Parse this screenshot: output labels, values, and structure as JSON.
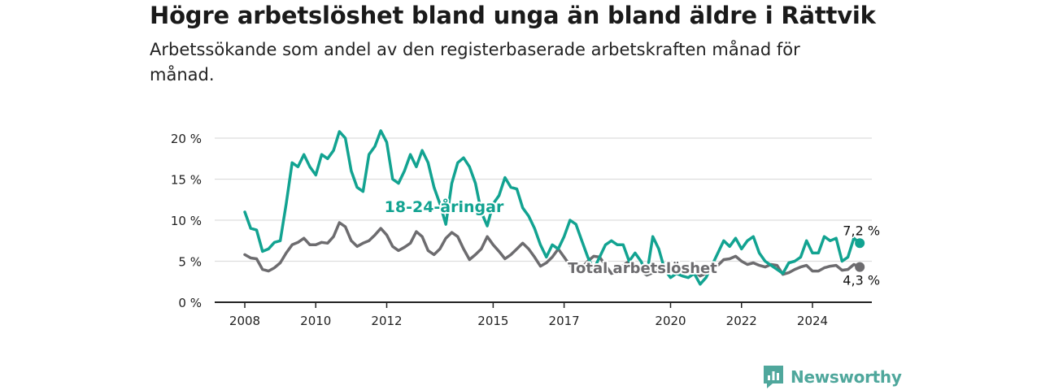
{
  "title": "Högre arbetslöshet bland unga än bland äldre i Rättvik",
  "subtitle": "Arbetssökande som andel av den registerbaserade arbetskraften månad för månad.",
  "brand": "Newsworthy",
  "colors": {
    "youth": "#12a391",
    "total": "#6d6c6f",
    "axis": "#222222",
    "grid": "#dddddd",
    "brand": "#4fa79c"
  },
  "chart_data": {
    "type": "line",
    "x_ticks": [
      "2008",
      "2010",
      "2012",
      "2015",
      "2017",
      "2020",
      "2022",
      "2024"
    ],
    "y_ticks": [
      "0 %",
      "5 %",
      "10 %",
      "15 %",
      "20 %"
    ],
    "ylim": [
      0,
      20
    ],
    "grid": true,
    "series": [
      {
        "name": "18-24-åringar",
        "end_label": "7,2 %",
        "points": [
          [
            "2008-01",
            11.0
          ],
          [
            "2008-03",
            9.0
          ],
          [
            "2008-05",
            8.8
          ],
          [
            "2008-07",
            6.2
          ],
          [
            "2008-09",
            6.5
          ],
          [
            "2008-11",
            7.3
          ],
          [
            "2009-01",
            7.5
          ],
          [
            "2009-03",
            12.0
          ],
          [
            "2009-05",
            17.0
          ],
          [
            "2009-07",
            16.5
          ],
          [
            "2009-09",
            18.0
          ],
          [
            "2009-11",
            16.5
          ],
          [
            "2010-01",
            15.5
          ],
          [
            "2010-03",
            18.0
          ],
          [
            "2010-05",
            17.5
          ],
          [
            "2010-07",
            18.5
          ],
          [
            "2010-09",
            20.8
          ],
          [
            "2010-11",
            20.0
          ],
          [
            "2011-01",
            16.0
          ],
          [
            "2011-03",
            14.0
          ],
          [
            "2011-05",
            13.5
          ],
          [
            "2011-07",
            18.0
          ],
          [
            "2011-09",
            19.0
          ],
          [
            "2011-11",
            20.9
          ],
          [
            "2012-01",
            19.5
          ],
          [
            "2012-03",
            15.0
          ],
          [
            "2012-05",
            14.5
          ],
          [
            "2012-07",
            16.0
          ],
          [
            "2012-09",
            18.0
          ],
          [
            "2012-11",
            16.5
          ],
          [
            "2013-01",
            18.5
          ],
          [
            "2013-03",
            17.0
          ],
          [
            "2013-05",
            14.0
          ],
          [
            "2013-07",
            12.0
          ],
          [
            "2013-09",
            9.5
          ],
          [
            "2013-11",
            14.5
          ],
          [
            "2014-01",
            17.0
          ],
          [
            "2014-03",
            17.6
          ],
          [
            "2014-05",
            16.5
          ],
          [
            "2014-07",
            14.5
          ],
          [
            "2014-09",
            11.0
          ],
          [
            "2014-11",
            9.3
          ],
          [
            "2015-01",
            12.0
          ],
          [
            "2015-03",
            13.0
          ],
          [
            "2015-05",
            15.2
          ],
          [
            "2015-07",
            14.0
          ],
          [
            "2015-09",
            13.8
          ],
          [
            "2015-11",
            11.5
          ],
          [
            "2016-01",
            10.5
          ],
          [
            "2016-03",
            9.0
          ],
          [
            "2016-05",
            7.0
          ],
          [
            "2016-07",
            5.5
          ],
          [
            "2016-09",
            7.0
          ],
          [
            "2016-11",
            6.5
          ],
          [
            "2017-01",
            8.0
          ],
          [
            "2017-03",
            10.0
          ],
          [
            "2017-05",
            9.5
          ],
          [
            "2017-07",
            7.5
          ],
          [
            "2017-09",
            5.5
          ],
          [
            "2017-11",
            4.0
          ],
          [
            "2018-01",
            5.5
          ],
          [
            "2018-03",
            7.0
          ],
          [
            "2018-05",
            7.5
          ],
          [
            "2018-07",
            7.0
          ],
          [
            "2018-09",
            7.0
          ],
          [
            "2018-11",
            5.0
          ],
          [
            "2019-01",
            6.0
          ],
          [
            "2019-03",
            5.0
          ],
          [
            "2019-05",
            3.5
          ],
          [
            "2019-07",
            8.0
          ],
          [
            "2019-09",
            6.5
          ],
          [
            "2019-11",
            4.0
          ],
          [
            "2020-01",
            3.0
          ],
          [
            "2020-03",
            3.5
          ],
          [
            "2020-05",
            3.2
          ],
          [
            "2020-07",
            3.0
          ],
          [
            "2020-09",
            3.5
          ],
          [
            "2020-11",
            2.2
          ],
          [
            "2021-01",
            3.0
          ],
          [
            "2021-03",
            4.5
          ],
          [
            "2021-05",
            6.0
          ],
          [
            "2021-07",
            7.5
          ],
          [
            "2021-09",
            6.8
          ],
          [
            "2021-11",
            7.8
          ],
          [
            "2022-01",
            6.5
          ],
          [
            "2022-03",
            7.5
          ],
          [
            "2022-05",
            8.0
          ],
          [
            "2022-07",
            6.0
          ],
          [
            "2022-09",
            5.0
          ],
          [
            "2022-11",
            4.5
          ],
          [
            "2023-01",
            4.0
          ],
          [
            "2023-03",
            3.5
          ],
          [
            "2023-05",
            4.8
          ],
          [
            "2023-07",
            5.0
          ],
          [
            "2023-09",
            5.5
          ],
          [
            "2023-11",
            7.5
          ],
          [
            "2024-01",
            6.0
          ],
          [
            "2024-03",
            6.0
          ],
          [
            "2024-05",
            8.0
          ],
          [
            "2024-07",
            7.5
          ],
          [
            "2024-09",
            7.8
          ],
          [
            "2024-11",
            5.0
          ],
          [
            "2025-01",
            5.5
          ],
          [
            "2025-03",
            7.8
          ],
          [
            "2025-05",
            7.2
          ]
        ]
      },
      {
        "name": "Total arbetslöshet",
        "end_label": "4,3 %",
        "points": [
          [
            "2008-01",
            5.8
          ],
          [
            "2008-03",
            5.4
          ],
          [
            "2008-05",
            5.3
          ],
          [
            "2008-07",
            4.0
          ],
          [
            "2008-09",
            3.8
          ],
          [
            "2008-11",
            4.2
          ],
          [
            "2009-01",
            4.8
          ],
          [
            "2009-03",
            6.0
          ],
          [
            "2009-05",
            7.0
          ],
          [
            "2009-07",
            7.3
          ],
          [
            "2009-09",
            7.8
          ],
          [
            "2009-11",
            7.0
          ],
          [
            "2010-01",
            7.0
          ],
          [
            "2010-03",
            7.3
          ],
          [
            "2010-05",
            7.2
          ],
          [
            "2010-07",
            8.0
          ],
          [
            "2010-09",
            9.7
          ],
          [
            "2010-11",
            9.2
          ],
          [
            "2011-01",
            7.5
          ],
          [
            "2011-03",
            6.8
          ],
          [
            "2011-05",
            7.2
          ],
          [
            "2011-07",
            7.5
          ],
          [
            "2011-09",
            8.2
          ],
          [
            "2011-11",
            9.0
          ],
          [
            "2012-01",
            8.2
          ],
          [
            "2012-03",
            6.8
          ],
          [
            "2012-05",
            6.3
          ],
          [
            "2012-07",
            6.7
          ],
          [
            "2012-09",
            7.2
          ],
          [
            "2012-11",
            8.6
          ],
          [
            "2013-01",
            8.0
          ],
          [
            "2013-03",
            6.3
          ],
          [
            "2013-05",
            5.8
          ],
          [
            "2013-07",
            6.5
          ],
          [
            "2013-09",
            7.8
          ],
          [
            "2013-11",
            8.5
          ],
          [
            "2014-01",
            8.0
          ],
          [
            "2014-03",
            6.5
          ],
          [
            "2014-05",
            5.2
          ],
          [
            "2014-07",
            5.8
          ],
          [
            "2014-09",
            6.5
          ],
          [
            "2014-11",
            8.0
          ],
          [
            "2015-01",
            7.0
          ],
          [
            "2015-03",
            6.2
          ],
          [
            "2015-05",
            5.3
          ],
          [
            "2015-07",
            5.8
          ],
          [
            "2015-09",
            6.5
          ],
          [
            "2015-11",
            7.2
          ],
          [
            "2016-01",
            6.5
          ],
          [
            "2016-03",
            5.5
          ],
          [
            "2016-05",
            4.4
          ],
          [
            "2016-07",
            4.8
          ],
          [
            "2016-09",
            5.5
          ],
          [
            "2016-11",
            6.5
          ],
          [
            "2017-01",
            5.5
          ],
          [
            "2017-03",
            4.5
          ],
          [
            "2017-05",
            3.8
          ],
          [
            "2017-07",
            4.2
          ],
          [
            "2017-09",
            5.0
          ],
          [
            "2017-11",
            5.6
          ],
          [
            "2018-01",
            5.5
          ],
          [
            "2018-03",
            4.5
          ],
          [
            "2018-05",
            3.5
          ],
          [
            "2018-07",
            3.8
          ],
          [
            "2018-09",
            4.5
          ],
          [
            "2018-11",
            5.0
          ],
          [
            "2019-01",
            4.5
          ],
          [
            "2019-03",
            3.8
          ],
          [
            "2019-05",
            3.3
          ],
          [
            "2019-07",
            3.6
          ],
          [
            "2019-09",
            4.0
          ],
          [
            "2019-11",
            4.2
          ],
          [
            "2020-01",
            4.0
          ],
          [
            "2020-03",
            3.8
          ],
          [
            "2020-05",
            3.5
          ],
          [
            "2020-07",
            3.6
          ],
          [
            "2020-09",
            3.8
          ],
          [
            "2020-11",
            3.2
          ],
          [
            "2021-01",
            3.5
          ],
          [
            "2021-03",
            4.0
          ],
          [
            "2021-05",
            4.5
          ],
          [
            "2021-07",
            5.2
          ],
          [
            "2021-09",
            5.3
          ],
          [
            "2021-11",
            5.6
          ],
          [
            "2022-01",
            5.0
          ],
          [
            "2022-03",
            4.6
          ],
          [
            "2022-05",
            4.8
          ],
          [
            "2022-07",
            4.5
          ],
          [
            "2022-09",
            4.3
          ],
          [
            "2022-11",
            4.6
          ],
          [
            "2023-01",
            4.5
          ],
          [
            "2023-03",
            3.4
          ],
          [
            "2023-05",
            3.6
          ],
          [
            "2023-07",
            4.0
          ],
          [
            "2023-09",
            4.3
          ],
          [
            "2023-11",
            4.5
          ],
          [
            "2024-01",
            3.8
          ],
          [
            "2024-03",
            3.8
          ],
          [
            "2024-05",
            4.2
          ],
          [
            "2024-07",
            4.4
          ],
          [
            "2024-09",
            4.5
          ],
          [
            "2024-11",
            3.9
          ],
          [
            "2025-01",
            4.0
          ],
          [
            "2025-03",
            4.6
          ],
          [
            "2025-05",
            4.3
          ]
        ]
      }
    ]
  }
}
